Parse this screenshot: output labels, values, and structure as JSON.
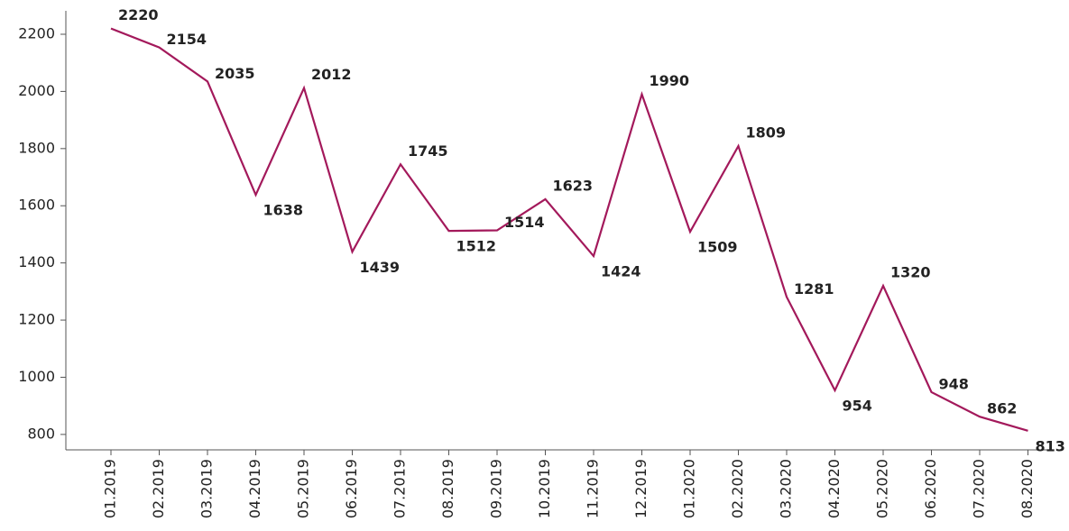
{
  "chart_data": {
    "type": "line",
    "categories": [
      "01.2019",
      "02.2019",
      "03.2019",
      "04.2019",
      "05.2019",
      "06.2019",
      "07.2019",
      "08.2019",
      "09.2019",
      "10.2019",
      "11.2019",
      "12.2019",
      "01.2020",
      "02.2020",
      "03.2020",
      "04.2020",
      "05.2020",
      "06.2020",
      "07.2020",
      "08.2020"
    ],
    "series": [
      {
        "color": "#a3195b",
        "values": [
          2220,
          2154,
          2035,
          1638,
          2012,
          1439,
          1745,
          1512,
          1514,
          1623,
          1424,
          1990,
          1509,
          1809,
          1281,
          954,
          1320,
          948,
          862,
          813
        ]
      }
    ],
    "ylim": [
      746,
      2282
    ],
    "yticks": [
      800,
      1000,
      1200,
      1400,
      1600,
      1800,
      2000,
      2200
    ],
    "grid": false
  }
}
